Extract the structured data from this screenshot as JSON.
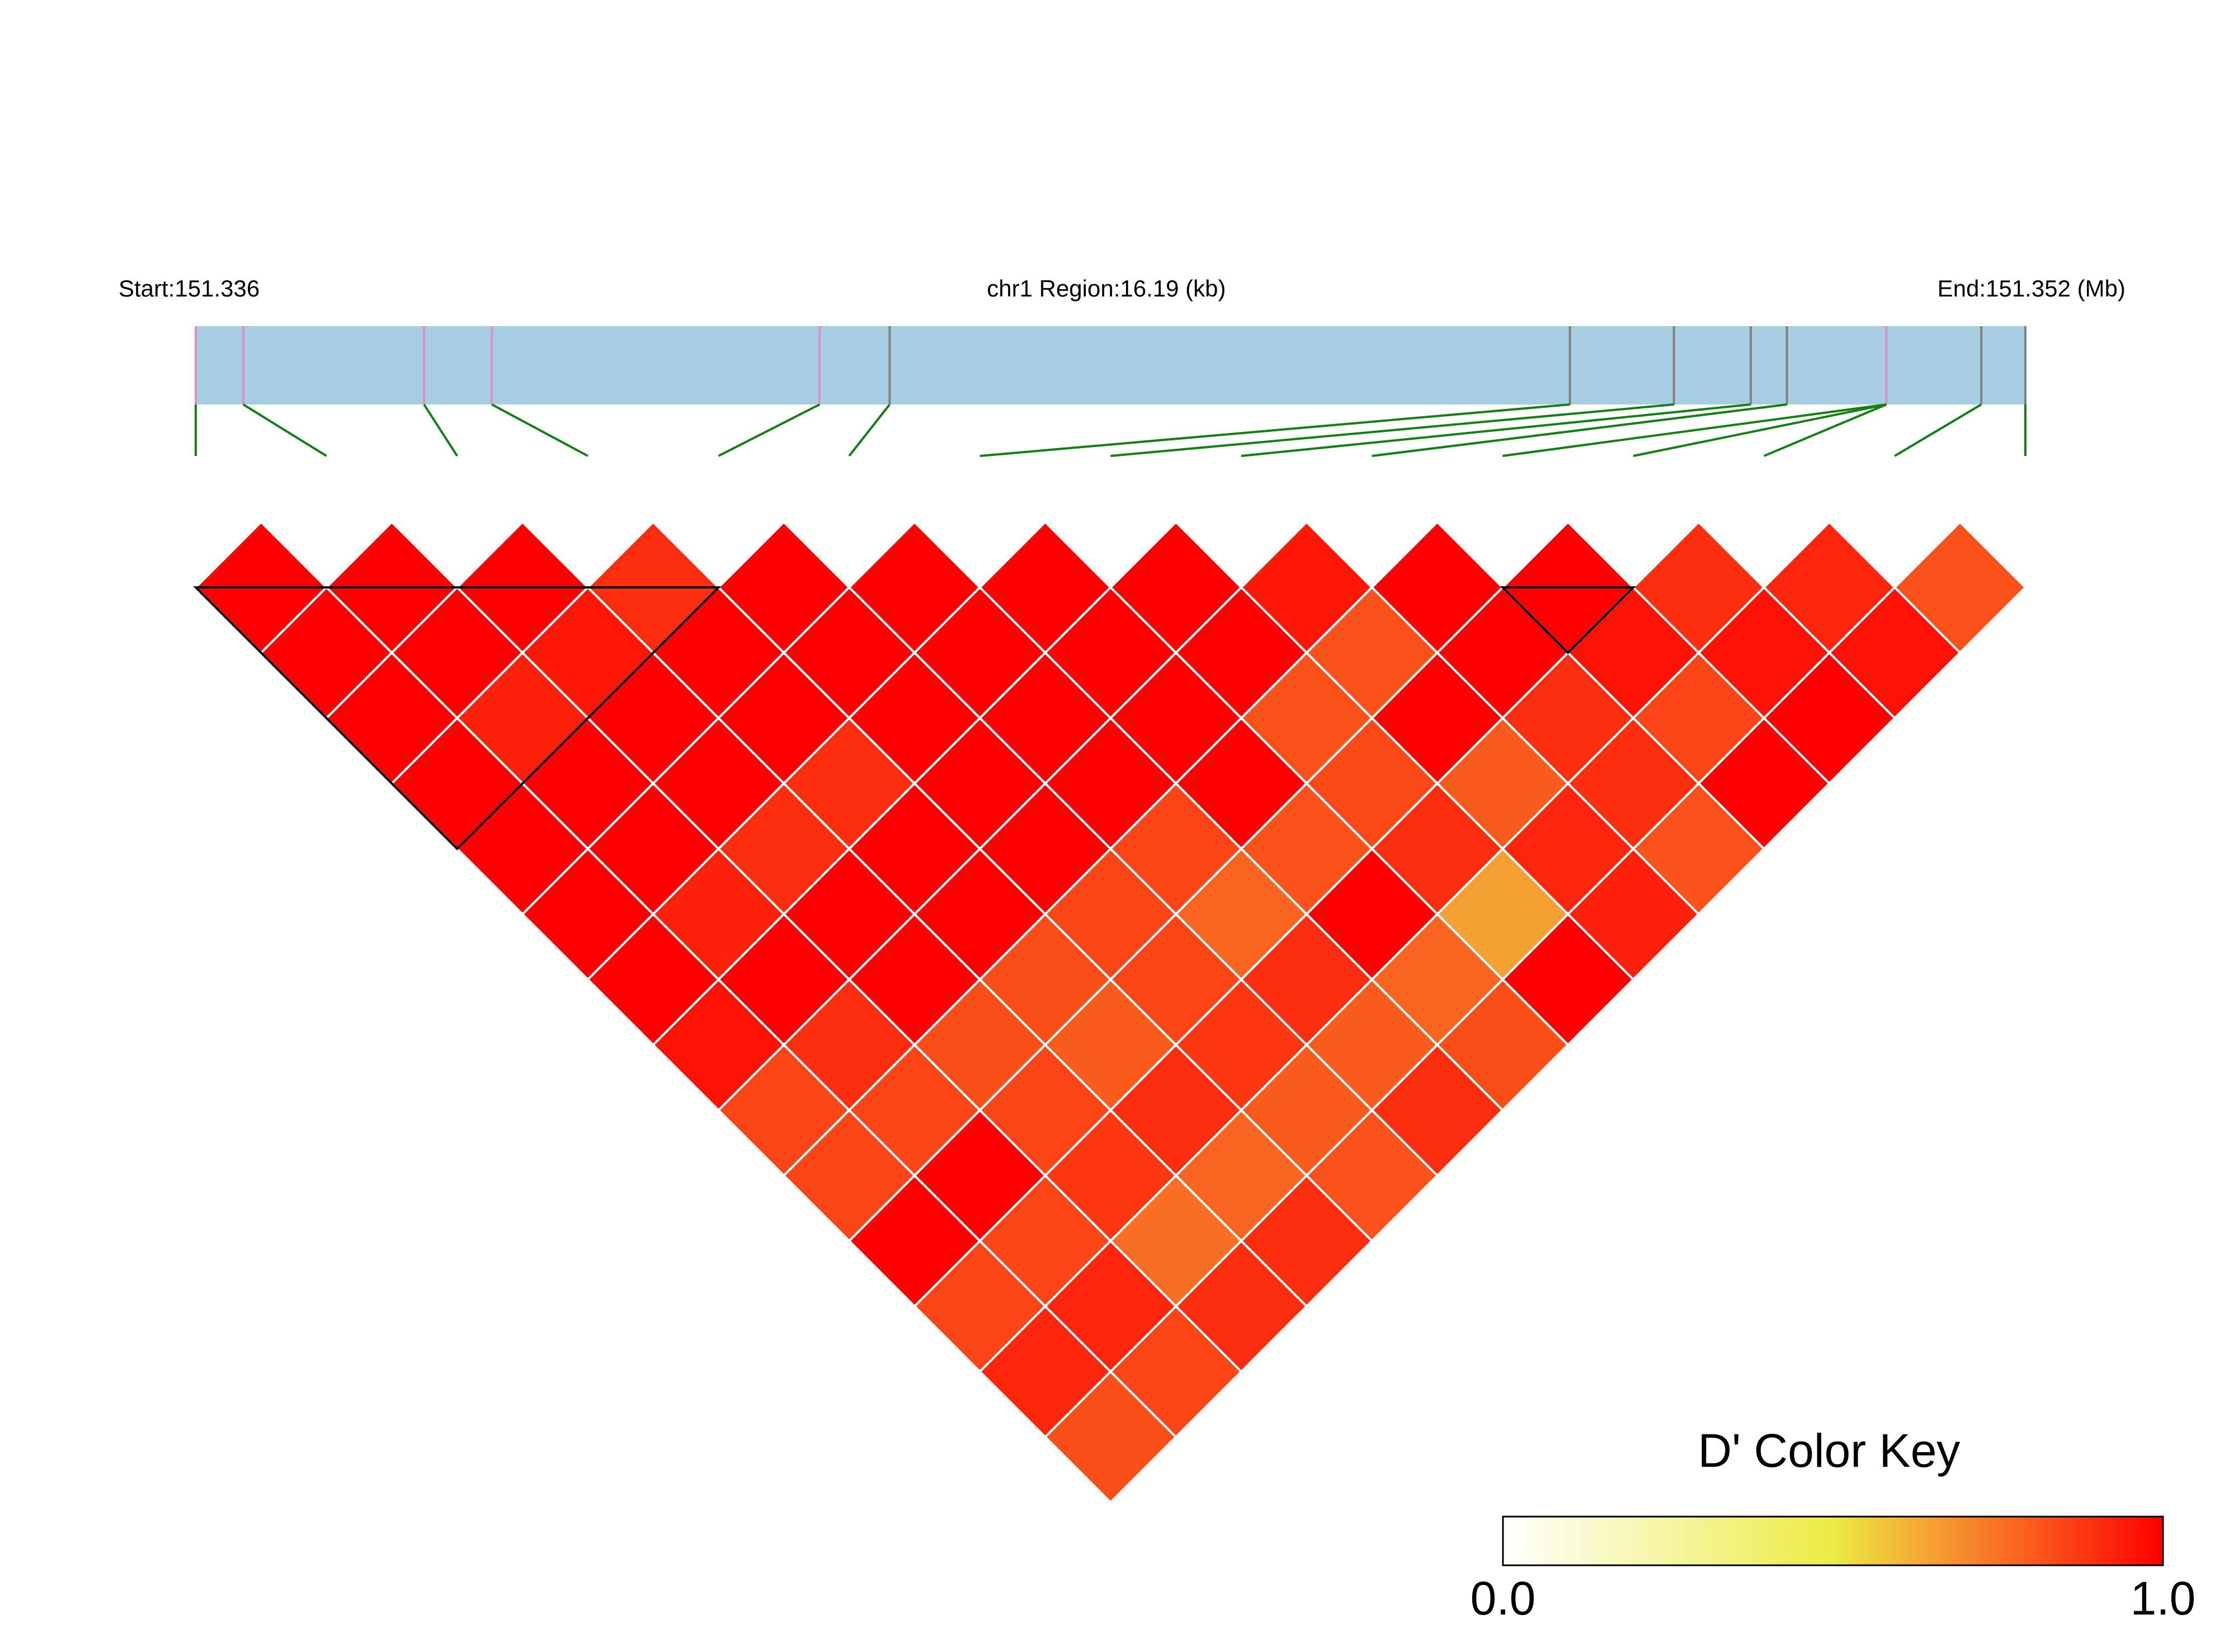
{
  "chart_data": {
    "type": "heatmap",
    "subtype": "ld-triangle",
    "header": {
      "start_label": "Start:151.336",
      "region_label": "chr1 Region:16.19 (kb)",
      "end_label": "End:151.352 (Mb)"
    },
    "region": {
      "start": 151.336,
      "end": 151.352,
      "units": "Mb"
    },
    "snp_count": 15,
    "snp_positions_kb": [
      0.0,
      0.42,
      2.02,
      2.62,
      5.52,
      6.14,
      12.16,
      13.08,
      13.76,
      14.08,
      14.96,
      15.8,
      16.19
    ],
    "snp_marker_colors": [
      "#e08ec4",
      "#e08ec4",
      "#e08ec4",
      "#e08ec4",
      "#e08ec4",
      "#808080",
      "#808080",
      "#808080",
      "#808080",
      "#808080",
      "#e08ec4",
      "#808080",
      "#808080"
    ],
    "snp_marker_groups": [
      {
        "marker": 0,
        "snps": [
          0
        ]
      },
      {
        "marker": 1,
        "snps": [
          1
        ]
      },
      {
        "marker": 2,
        "snps": [
          2
        ]
      },
      {
        "marker": 3,
        "snps": [
          3
        ]
      },
      {
        "marker": 4,
        "snps": [
          4
        ]
      },
      {
        "marker": 5,
        "snps": [
          5
        ]
      },
      {
        "marker": 6,
        "snps": [
          6
        ]
      },
      {
        "marker": 7,
        "snps": [
          7
        ]
      },
      {
        "marker": 8,
        "snps": [
          8
        ]
      },
      {
        "marker": 9,
        "snps": [
          9
        ]
      },
      {
        "marker": 10,
        "snps": [
          10,
          11,
          12
        ]
      },
      {
        "marker": 11,
        "snps": [
          13
        ]
      },
      {
        "marker": 12,
        "snps": [
          14
        ]
      }
    ],
    "dprime_rows": [
      [
        1.0,
        1.0,
        1.0,
        0.9,
        1.0,
        1.0,
        1.0,
        1.0,
        0.95,
        1.0,
        1.0,
        0.9,
        0.92,
        0.82
      ],
      [
        1.0,
        1.0,
        0.95,
        1.0,
        1.0,
        1.0,
        1.0,
        1.0,
        0.82,
        1.0,
        0.96,
        0.96,
        0.96
      ],
      [
        1.0,
        0.93,
        1.0,
        1.0,
        1.0,
        1.0,
        1.0,
        0.82,
        1.0,
        0.9,
        0.85,
        1.0
      ],
      [
        1.0,
        1.0,
        1.0,
        0.9,
        1.0,
        1.0,
        1.0,
        0.84,
        0.8,
        0.9,
        1.0
      ],
      [
        1.0,
        1.0,
        0.9,
        1.0,
        1.0,
        0.85,
        0.82,
        0.9,
        0.92,
        0.82
      ],
      [
        1.0,
        0.93,
        1.0,
        1.0,
        0.85,
        0.78,
        1.0,
        0.65,
        0.93
      ],
      [
        1.0,
        1.0,
        1.0,
        0.83,
        0.85,
        0.9,
        0.78,
        1.0
      ],
      [
        0.96,
        0.9,
        0.83,
        0.8,
        0.88,
        0.8,
        0.83
      ],
      [
        0.85,
        0.85,
        0.85,
        0.9,
        0.8,
        0.9
      ],
      [
        0.85,
        1.0,
        0.88,
        0.78,
        0.82
      ],
      [
        1.0,
        0.85,
        0.76,
        0.9
      ],
      [
        0.85,
        0.92,
        0.9
      ],
      [
        0.92,
        0.85
      ],
      [
        0.83
      ]
    ],
    "blocks": [
      {
        "first_snp": 0,
        "last_snp": 4
      },
      {
        "first_snp": 10,
        "last_snp": 11
      }
    ],
    "color_key": {
      "title": "D' Color Key",
      "min_label": "0.0",
      "max_label": "1.0",
      "range": [
        0.0,
        1.0
      ],
      "colors": [
        "#ffffff",
        "#ecec44",
        "#f5a033",
        "#ff0000"
      ]
    },
    "colors": {
      "region_bar": "#a6cde1",
      "connector": "#138013",
      "cell_border": "#ffffff",
      "block_outline": "#000000"
    },
    "legend_position": "bottom-right",
    "grid": false
  }
}
